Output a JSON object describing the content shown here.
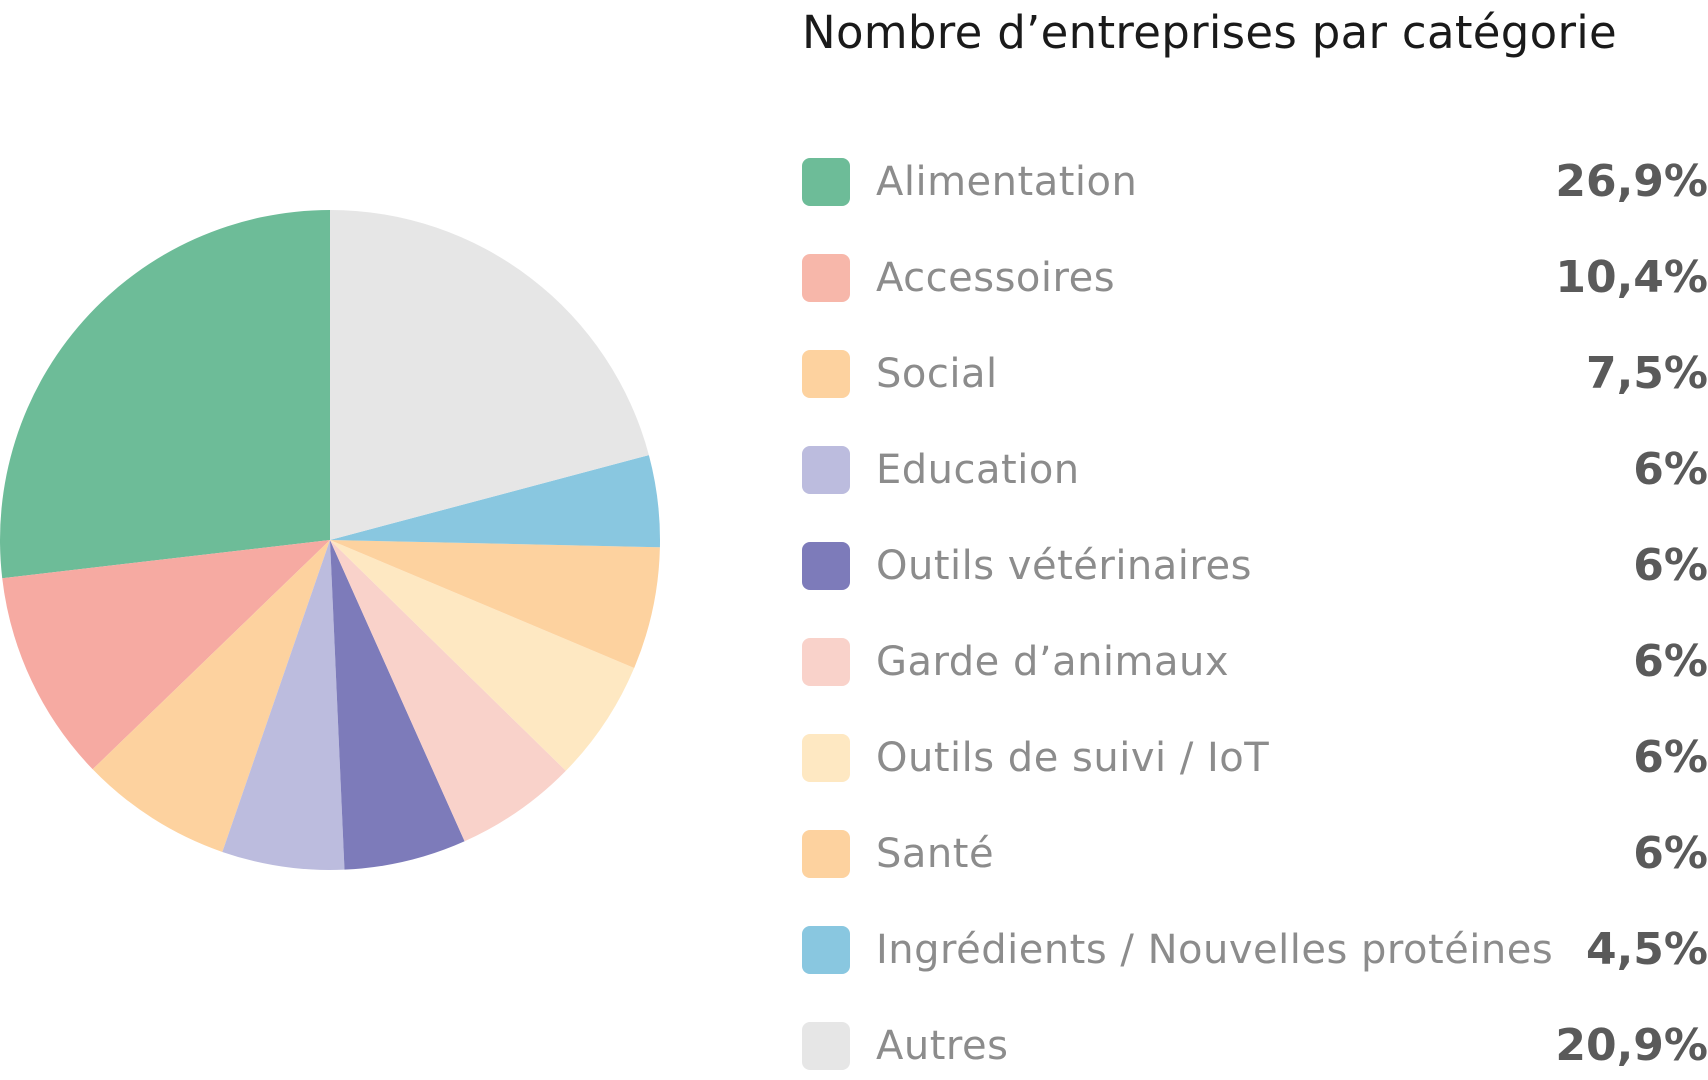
{
  "chart_data": {
    "type": "pie",
    "title": "Nombre d’entreprises par catégorie",
    "slices": [
      {
        "label": "Alimentation",
        "value": 26.9,
        "display": "26,9%",
        "color": "#6dbc98",
        "legend_color": "#6dbc98"
      },
      {
        "label": "Accessoires",
        "value": 10.4,
        "display": "10,4%",
        "color": "#f6aaa2",
        "legend_color": "#f7b7aa"
      },
      {
        "label": "Social",
        "value": 7.5,
        "display": "7,5%",
        "color": "#fdd29f",
        "legend_color": "#fdd29f"
      },
      {
        "label": "Education",
        "value": 6,
        "display": "6%",
        "color": "#bcbcde",
        "legend_color": "#bcbcde"
      },
      {
        "label": "Outils vétérinaires",
        "value": 6,
        "display": "6%",
        "color": "#7d7bba",
        "legend_color": "#7d7bba"
      },
      {
        "label": "Garde d’animaux",
        "value": 6,
        "display": "6%",
        "color": "#f9d2ca",
        "legend_color": "#f9d2ca"
      },
      {
        "label": "Outils de suivi / IoT",
        "value": 6,
        "display": "6%",
        "color": "#fee8c2",
        "legend_color": "#fee8c2"
      },
      {
        "label": "Santé",
        "value": 6,
        "display": "6%",
        "color": "#fdd29f",
        "legend_color": "#fdd29f"
      },
      {
        "label": "Ingrédients / Nouvelles protéines",
        "value": 4.5,
        "display": "4,5%",
        "color": "#89c7e0",
        "legend_color": "#89c7e0"
      },
      {
        "label": "Autres",
        "value": 20.9,
        "display": "20,9%",
        "color": "#e6e6e6",
        "legend_color": "#e6e6e6"
      }
    ],
    "start_angle_deg": 0,
    "direction": "counterclockwise",
    "legend_position": "right"
  }
}
